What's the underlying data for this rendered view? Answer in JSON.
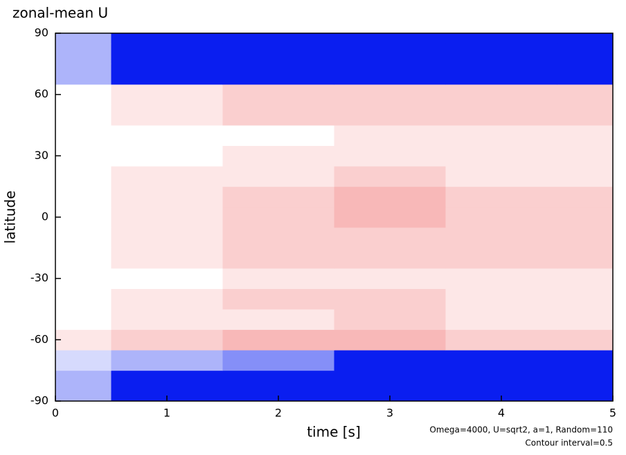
{
  "chart_data": {
    "type": "contour",
    "title": "zonal-mean U",
    "x_label": "time [s]",
    "y_label": "latitude",
    "annotations": [
      "Omega=4000, U=sqrt2, a=1, Random=110",
      "Contour interval=0.5"
    ],
    "x": [
      0,
      1,
      2,
      3,
      4,
      5
    ],
    "y": [
      -90,
      -80,
      -70,
      -60,
      -50,
      -40,
      -30,
      -20,
      -10,
      0,
      10,
      20,
      30,
      40,
      50,
      60,
      70,
      80,
      90
    ],
    "z": [
      [
        -1,
        -6,
        -6,
        -6,
        -6,
        -6
      ],
      [
        -1,
        -4,
        -6,
        -6,
        -6,
        -6
      ],
      [
        -0.5,
        -1,
        -1.5,
        -3,
        -4,
        -5
      ],
      [
        0.5,
        1,
        1.5,
        1.5,
        1,
        1
      ],
      [
        0,
        0.5,
        0.5,
        1,
        0.5,
        0.5
      ],
      [
        0,
        0.5,
        1,
        1,
        0.5,
        0.5
      ],
      [
        0,
        0,
        0.5,
        0.5,
        0.5,
        0.5
      ],
      [
        0,
        0.5,
        1,
        1,
        1,
        1
      ],
      [
        0,
        0.5,
        1,
        1,
        1,
        1
      ],
      [
        0,
        0.5,
        1,
        1.5,
        1,
        1
      ],
      [
        0,
        0.5,
        1,
        1.5,
        1,
        1
      ],
      [
        0,
        0.5,
        0.5,
        1,
        0.5,
        0.5
      ],
      [
        0,
        0,
        0.5,
        0.5,
        0.5,
        0.5
      ],
      [
        0,
        0,
        0,
        0.5,
        0.5,
        0.5
      ],
      [
        0,
        0.5,
        1,
        1,
        1,
        1
      ],
      [
        0,
        0.5,
        1,
        1,
        1,
        1
      ],
      [
        -1,
        -4,
        -6,
        -6,
        -6,
        -6
      ],
      [
        -1,
        -6,
        -6,
        -6,
        -6,
        -6
      ],
      [
        -1,
        -6,
        -6,
        -6,
        -6,
        -6
      ]
    ],
    "clim": [
      -3,
      3
    ],
    "colors": {
      "negative": "#0a1ef0",
      "zero": "#ffffff",
      "positive": "#f07070"
    },
    "xlim": [
      0,
      5
    ],
    "xticks": [
      0,
      1,
      2,
      3,
      4,
      5
    ],
    "ylim": [
      -90,
      90
    ],
    "yticks": [
      -90,
      -60,
      -30,
      0,
      30,
      60,
      90
    ]
  }
}
